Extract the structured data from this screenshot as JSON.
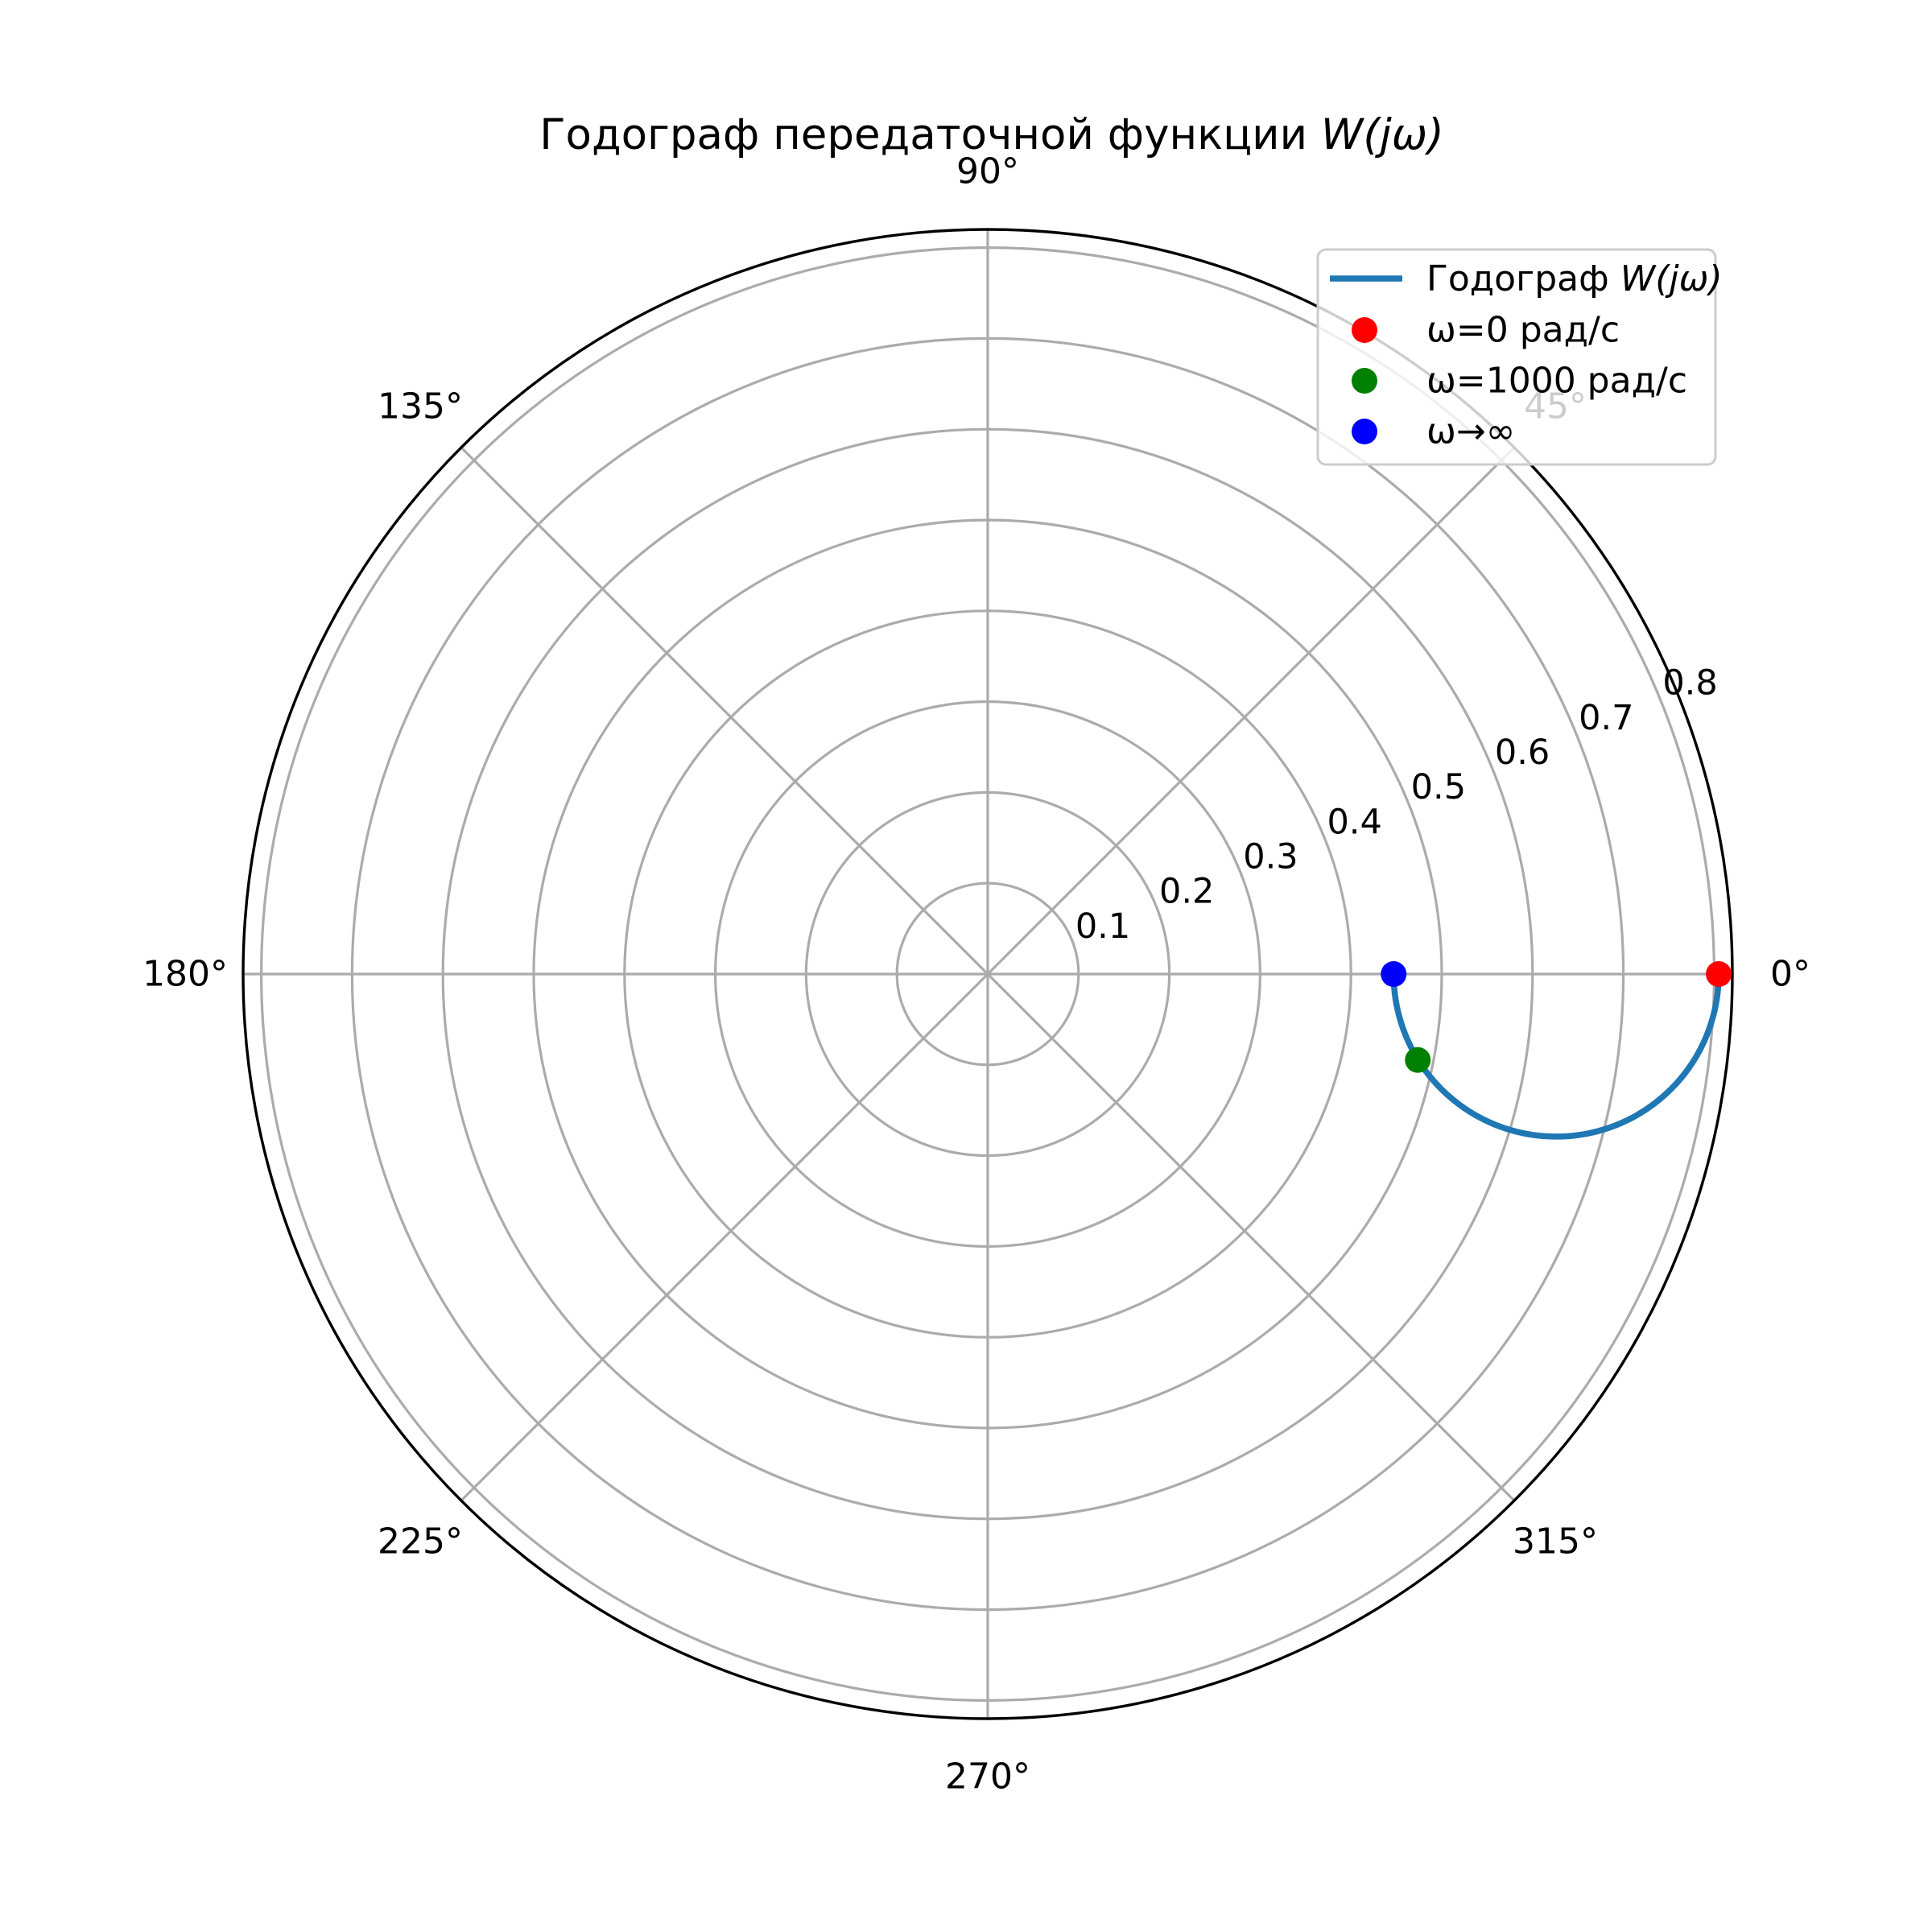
{
  "figure": {
    "title": {
      "text_plain": "Годограф передаточной функции ",
      "text_math": "W(jω)"
    },
    "background_color": "#ffffff"
  },
  "chart_data": {
    "type": "line",
    "projection": "polar",
    "title": "Годограф передаточной функции W(jω)",
    "angular_tick_labels": [
      "0°",
      "45°",
      "90°",
      "135°",
      "180°",
      "225°",
      "270°",
      "315°"
    ],
    "angular_ticks_deg": [
      0,
      45,
      90,
      135,
      180,
      225,
      270,
      315
    ],
    "radial_ticks": [
      0.1,
      0.2,
      0.3,
      0.4,
      0.5,
      0.6,
      0.7,
      0.8
    ],
    "radial_tick_labels": [
      "0.1",
      "0.2",
      "0.3",
      "0.4",
      "0.5",
      "0.6",
      "0.7",
      "0.8"
    ],
    "rmax": 0.82,
    "rlabel_position_deg": 22.5,
    "grid": true,
    "grid_color": "#ababab",
    "spine_color": "#000000",
    "series": [
      {
        "label_plain": "Годограф ",
        "label_math": "W(jω)",
        "color": "#1f77b4",
        "shape": "semicircle-below-real-axis",
        "start": {
          "r": 0.805,
          "theta_deg": 0,
          "note": "ω=0"
        },
        "end": {
          "r": 0.447,
          "theta_deg": 0,
          "note": "ω→∞"
        },
        "arc_center_r": 0.626,
        "arc_radius": 0.179
      }
    ],
    "points": [
      {
        "name": "omega-0",
        "label": "ω=0 рад/с",
        "r": 0.805,
        "theta_deg": 0,
        "color": "#ff0000"
      },
      {
        "name": "omega-1000",
        "label": "ω=1000 рад/с",
        "r": 0.483,
        "theta_deg": -11.3,
        "color": "#008000"
      },
      {
        "name": "omega-inf",
        "label": "ω→∞",
        "r": 0.447,
        "theta_deg": 0,
        "color": "#0000ff"
      }
    ],
    "legend": {
      "position": "upper right",
      "frame_color": "#cccccc",
      "background": "#ffffff",
      "background_opacity": 0.8,
      "items": [
        {
          "type": "line",
          "color": "#1f77b4",
          "label_plain": "Годограф ",
          "label_math": "W(jω)"
        },
        {
          "type": "marker",
          "color": "#ff0000",
          "label": "ω=0 рад/с"
        },
        {
          "type": "marker",
          "color": "#008000",
          "label": "ω=1000 рад/с"
        },
        {
          "type": "marker",
          "color": "#0000ff",
          "label": "ω→∞"
        }
      ]
    },
    "faded_label_behind_legend": "45°"
  }
}
